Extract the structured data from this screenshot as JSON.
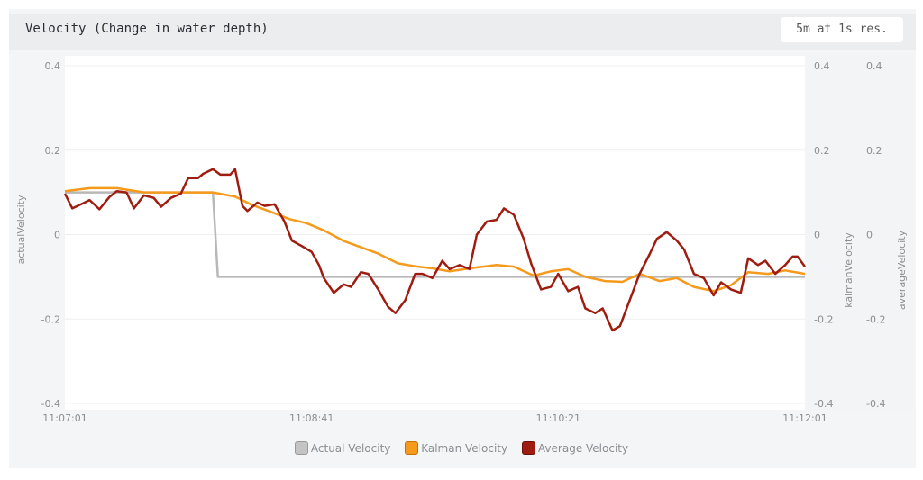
{
  "header": {
    "title": "Velocity (Change in water depth)",
    "range_badge": "5m at 1s res."
  },
  "chart_data": {
    "type": "line",
    "title": "Velocity (Change in water depth)",
    "xlabel": "",
    "ylabels": [
      "actualVelocity",
      "kalmanVelocity",
      "averageVelocity"
    ],
    "ylim": [
      -0.4,
      0.4
    ],
    "yticks": [
      "0.4",
      "0.2",
      "0",
      "-0.2",
      "-0.4"
    ],
    "xlim_seconds": [
      0,
      300
    ],
    "xticks": [
      {
        "t": 0,
        "label": "11:07:01"
      },
      {
        "t": 100,
        "label": "11:08:41"
      },
      {
        "t": 200,
        "label": "11:10:21"
      },
      {
        "t": 300,
        "label": "11:12:01"
      }
    ],
    "grid": true,
    "legend_position": "bottom",
    "series": [
      {
        "name": "Actual Velocity",
        "color": "#b8b8b8",
        "x": [
          0,
          60,
          62,
          300
        ],
        "y": [
          0.1,
          0.1,
          -0.1,
          -0.1
        ]
      },
      {
        "name": "Kalman Velocity",
        "color": "#f59a1b",
        "x": [
          0,
          10,
          21,
          32,
          47,
          60,
          69,
          76,
          83,
          91,
          98,
          105,
          113,
          120,
          127,
          135,
          142,
          149,
          156,
          164,
          175,
          182,
          190,
          197,
          204,
          211,
          219,
          226,
          233,
          241,
          248,
          255,
          263,
          270,
          277,
          285,
          292,
          300
        ],
        "y": [
          0.103,
          0.11,
          0.11,
          0.1,
          0.1,
          0.1,
          0.09,
          0.07,
          0.055,
          0.037,
          0.027,
          0.01,
          -0.015,
          -0.03,
          -0.045,
          -0.068,
          -0.075,
          -0.08,
          -0.087,
          -0.08,
          -0.072,
          -0.076,
          -0.097,
          -0.087,
          -0.082,
          -0.1,
          -0.11,
          -0.112,
          -0.093,
          -0.11,
          -0.103,
          -0.124,
          -0.134,
          -0.12,
          -0.089,
          -0.093,
          -0.085,
          -0.093
        ]
      },
      {
        "name": "Average Velocity",
        "color": "#9e1d10",
        "x": [
          0,
          3,
          8,
          10,
          14,
          18,
          21,
          25,
          28,
          32,
          36,
          39,
          43,
          47,
          50,
          54,
          56,
          60,
          63,
          67,
          69,
          72,
          74,
          78,
          81,
          85,
          89,
          92,
          96,
          100,
          103,
          105,
          109,
          113,
          116,
          120,
          123,
          127,
          131,
          134,
          138,
          142,
          145,
          149,
          153,
          156,
          160,
          164,
          167,
          171,
          175,
          178,
          182,
          186,
          189,
          193,
          197,
          200,
          204,
          208,
          211,
          215,
          218,
          222,
          225,
          229,
          233,
          237,
          240,
          244,
          248,
          251,
          255,
          259,
          263,
          266,
          270,
          274,
          277,
          281,
          284,
          288,
          292,
          295,
          297,
          300
        ],
        "y": [
          0.097,
          0.062,
          0.076,
          0.082,
          0.06,
          0.089,
          0.103,
          0.1,
          0.062,
          0.093,
          0.087,
          0.066,
          0.087,
          0.097,
          0.134,
          0.134,
          0.144,
          0.155,
          0.142,
          0.142,
          0.155,
          0.068,
          0.056,
          0.076,
          0.068,
          0.072,
          0.031,
          -0.014,
          -0.027,
          -0.041,
          -0.072,
          -0.103,
          -0.138,
          -0.118,
          -0.124,
          -0.089,
          -0.093,
          -0.13,
          -0.171,
          -0.186,
          -0.155,
          -0.093,
          -0.093,
          -0.103,
          -0.062,
          -0.082,
          -0.072,
          -0.082,
          0.0,
          0.031,
          0.035,
          0.062,
          0.047,
          -0.01,
          -0.068,
          -0.13,
          -0.124,
          -0.093,
          -0.134,
          -0.124,
          -0.175,
          -0.186,
          -0.175,
          -0.227,
          -0.217,
          -0.155,
          -0.093,
          -0.047,
          -0.01,
          0.006,
          -0.014,
          -0.035,
          -0.093,
          -0.103,
          -0.144,
          -0.113,
          -0.13,
          -0.138,
          -0.056,
          -0.072,
          -0.062,
          -0.093,
          -0.072,
          -0.052,
          -0.052,
          -0.076
        ]
      }
    ]
  }
}
